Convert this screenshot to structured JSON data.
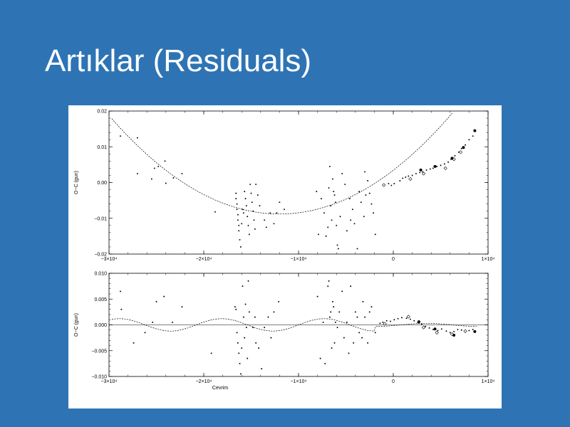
{
  "slide": {
    "title": "Artıklar (Residuals)"
  },
  "chart_data": [
    {
      "type": "scatter",
      "ylabel": "O−C (gun)",
      "xlabel": "",
      "xlim": [
        -30000,
        10000
      ],
      "ylim": [
        -0.02,
        0.02
      ],
      "x_ticks": [
        -30000,
        -20000,
        -10000,
        0,
        10000
      ],
      "x_tick_labels": [
        "−3×10⁴",
        "−2×10⁴",
        "−1×10⁴",
        "0",
        "1×10⁴"
      ],
      "y_ticks": [
        -0.02,
        -0.01,
        0.0,
        0.01,
        0.02
      ],
      "y_tick_labels": [
        "−0.02",
        "−0.01",
        "0.00",
        "0.01",
        "0.02"
      ],
      "fit": {
        "kind": "parabola",
        "vertex_x": -12000,
        "vertex_y": -0.0088,
        "a": 8.5e-11
      },
      "series": [
        {
          "marker": "dot",
          "points": [
            [
              -28800,
              0.013
            ],
            [
              -27000,
              0.0125
            ],
            [
              -27000,
              0.0025
            ],
            [
              -25500,
              0.001
            ],
            [
              -25200,
              0.004
            ],
            [
              -24800,
              0.0045
            ],
            [
              -24100,
              0.006
            ],
            [
              -24000,
              -0.0002
            ],
            [
              -23200,
              0.0013
            ],
            [
              -22300,
              0.0025
            ],
            [
              -18800,
              -0.0082
            ],
            [
              -16600,
              -0.003
            ],
            [
              -16600,
              -0.0045
            ],
            [
              -16500,
              -0.006
            ],
            [
              -16500,
              -0.0075
            ],
            [
              -16400,
              -0.009
            ],
            [
              -16400,
              -0.0105
            ],
            [
              -16300,
              -0.012
            ],
            [
              -16300,
              -0.0135
            ],
            [
              -16200,
              -0.016
            ],
            [
              -16100,
              -0.018
            ],
            [
              -16000,
              -0.0115
            ],
            [
              -15900,
              -0.0075
            ],
            [
              -15800,
              -0.0085
            ],
            [
              -15700,
              -0.0025
            ],
            [
              -15600,
              -0.0045
            ],
            [
              -15500,
              -0.0065
            ],
            [
              -15400,
              -0.0095
            ],
            [
              -15300,
              -0.012
            ],
            [
              -15200,
              -0.0145
            ],
            [
              -15100,
              -0.0005
            ],
            [
              -15000,
              -0.003
            ],
            [
              -14900,
              -0.0055
            ],
            [
              -14800,
              -0.008
            ],
            [
              -14700,
              -0.0105
            ],
            [
              -14600,
              -0.013
            ],
            [
              -14500,
              -0.0005
            ],
            [
              -14300,
              -0.0035
            ],
            [
              -14100,
              -0.0065
            ],
            [
              -13600,
              -0.0105
            ],
            [
              -13400,
              -0.0125
            ],
            [
              -13000,
              -0.0085
            ],
            [
              -12600,
              -0.0115
            ],
            [
              -12300,
              -0.0085
            ],
            [
              -12000,
              -0.0055
            ],
            [
              -11500,
              -0.0075
            ],
            [
              -8100,
              -0.0025
            ],
            [
              -7900,
              -0.0145
            ],
            [
              -7600,
              -0.0045
            ],
            [
              -7300,
              -0.0085
            ],
            [
              -7100,
              -0.015
            ],
            [
              -6900,
              -0.0125
            ],
            [
              -6800,
              -0.0015
            ],
            [
              -6700,
              0.0045
            ],
            [
              -6600,
              -0.0065
            ],
            [
              -6500,
              -0.0105
            ],
            [
              -6400,
              0.001
            ],
            [
              -6300,
              -0.0025
            ],
            [
              -6200,
              -0.0035
            ],
            [
              -6100,
              -0.0055
            ],
            [
              -6000,
              -0.012
            ],
            [
              -5900,
              -0.0175
            ],
            [
              -5800,
              -0.0185
            ],
            [
              -5600,
              -0.0095
            ],
            [
              -5400,
              0.0025
            ],
            [
              -5100,
              -0.0005
            ],
            [
              -4900,
              -0.0135
            ],
            [
              -4600,
              -0.0045
            ],
            [
              -4500,
              -0.0105
            ],
            [
              -4300,
              -0.0075
            ],
            [
              -4100,
              -0.0115
            ],
            [
              -3800,
              -0.0185
            ],
            [
              -3600,
              -0.0025
            ],
            [
              -3400,
              -0.0055
            ],
            [
              -3100,
              -0.0095
            ],
            [
              -3000,
              0.003
            ],
            [
              -2900,
              -0.0035
            ],
            [
              -2700,
              0.0005
            ],
            [
              -2500,
              -0.003
            ],
            [
              -2300,
              -0.006
            ],
            [
              -2100,
              -0.0085
            ],
            [
              -1900,
              -0.0145
            ],
            [
              -500,
              -0.0003
            ],
            [
              -200,
              -0.0008
            ],
            [
              100,
              -0.0003
            ],
            [
              700,
              0.0005
            ],
            [
              1000,
              0.0012
            ],
            [
              1300,
              0.0015
            ],
            [
              1600,
              0.0018
            ],
            [
              2000,
              0.002
            ],
            [
              2400,
              0.0025
            ],
            [
              2800,
              0.0028
            ],
            [
              3100,
              0.003
            ],
            [
              3500,
              0.0035
            ],
            [
              3900,
              0.0038
            ],
            [
              4200,
              0.004
            ],
            [
              4600,
              0.0045
            ],
            [
              5000,
              0.0048
            ],
            [
              5400,
              0.0052
            ],
            [
              5800,
              0.0057
            ],
            [
              6100,
              0.0065
            ],
            [
              6500,
              0.0075
            ],
            [
              6900,
              0.0085
            ],
            [
              7200,
              0.0095
            ],
            [
              7600,
              0.0105
            ],
            [
              8000,
              0.012
            ],
            [
              8400,
              0.013
            ]
          ]
        },
        {
          "marker": "open-diamond",
          "points": [
            [
              -1000,
              -0.0007
            ],
            [
              1800,
              0.001
            ],
            [
              3200,
              0.0025
            ],
            [
              5500,
              0.004
            ],
            [
              6400,
              0.0065
            ],
            [
              7100,
              0.0085
            ]
          ]
        },
        {
          "marker": "filled-circle",
          "points": [
            [
              2900,
              0.0035
            ],
            [
              4400,
              0.0045
            ],
            [
              6200,
              0.0068
            ],
            [
              7400,
              0.0098
            ],
            [
              8600,
              0.0145
            ]
          ]
        }
      ]
    },
    {
      "type": "scatter",
      "ylabel": "O−C (gun)",
      "xlabel": "Cevrim",
      "xlim": [
        -30000,
        10000
      ],
      "ylim": [
        -0.01,
        0.01
      ],
      "x_ticks": [
        -30000,
        -20000,
        -10000,
        0,
        10000
      ],
      "x_tick_labels": [
        "−3×10⁴",
        "−2×10⁴",
        "−1×10⁴",
        "0",
        "1×10⁴"
      ],
      "y_ticks": [
        -0.01,
        -0.005,
        0.0,
        0.005,
        0.01
      ],
      "y_tick_labels": [
        "−0.010",
        "−0.005",
        "0.000",
        "0.005",
        "0.010"
      ],
      "zero_line": true,
      "fit": {
        "kind": "damped-sine",
        "amplitude": 0.0012,
        "period": 10800,
        "phase_x": -28900,
        "damp_after": -2000,
        "damp_amplitude": 0.0003
      },
      "series": [
        {
          "marker": "dot",
          "points": [
            [
              -28800,
              0.0065
            ],
            [
              -28700,
              0.003
            ],
            [
              -27400,
              -0.0035
            ],
            [
              -26200,
              -0.0015
            ],
            [
              -25400,
              0.0005
            ],
            [
              -25000,
              0.0045
            ],
            [
              -24200,
              0.0055
            ],
            [
              -23300,
              0.0005
            ],
            [
              -22300,
              0.0035
            ],
            [
              -19200,
              -0.0055
            ],
            [
              -16700,
              0.0035
            ],
            [
              -16600,
              0.003
            ],
            [
              -16500,
              -0.0015
            ],
            [
              -16400,
              -0.0035
            ],
            [
              -16300,
              -0.0055
            ],
            [
              -16200,
              -0.0075
            ],
            [
              -16100,
              -0.0095
            ],
            [
              -16000,
              -0.0045
            ],
            [
              -15900,
              0.0075
            ],
            [
              -15800,
              0.0015
            ],
            [
              -15700,
              -0.0025
            ],
            [
              -15600,
              0.004
            ],
            [
              -15500,
              -0.0005
            ],
            [
              -15400,
              -0.0065
            ],
            [
              -15300,
              0.0085
            ],
            [
              -15200,
              0.0025
            ],
            [
              -14800,
              -0.0005
            ],
            [
              -14600,
              0.0015
            ],
            [
              -14500,
              -0.0035
            ],
            [
              -14200,
              -0.0045
            ],
            [
              -13900,
              -0.0085
            ],
            [
              -13600,
              -0.0005
            ],
            [
              -13200,
              0.0015
            ],
            [
              -12900,
              -0.0025
            ],
            [
              -12600,
              0.0025
            ],
            [
              -12100,
              0.0045
            ],
            [
              -8000,
              0.0055
            ],
            [
              -7700,
              -0.0065
            ],
            [
              -7400,
              0.0005
            ],
            [
              -7200,
              -0.0075
            ],
            [
              -6900,
              0.0075
            ],
            [
              -6800,
              0.0085
            ],
            [
              -6700,
              0.0015
            ],
            [
              -6600,
              0.0025
            ],
            [
              -6500,
              -0.0045
            ],
            [
              -6400,
              0.0045
            ],
            [
              -6300,
              0.0035
            ],
            [
              -6200,
              -0.0035
            ],
            [
              -6100,
              0.0005
            ],
            [
              -5900,
              -0.0005
            ],
            [
              -5700,
              0.0025
            ],
            [
              -5400,
              0.0065
            ],
            [
              -5200,
              -0.0025
            ],
            [
              -4900,
              0.0005
            ],
            [
              -4700,
              -0.0055
            ],
            [
              -4500,
              0.0075
            ],
            [
              -4200,
              -0.0035
            ],
            [
              -4000,
              0.0025
            ],
            [
              -3800,
              0.0015
            ],
            [
              -3600,
              -0.0015
            ],
            [
              -3300,
              -0.0025
            ],
            [
              -3200,
              0.0045
            ],
            [
              -3000,
              0.0015
            ],
            [
              -2700,
              -0.0035
            ],
            [
              -2500,
              0.0025
            ],
            [
              -2300,
              0.0035
            ],
            [
              -1900,
              -0.0015
            ],
            [
              -1400,
              0.0003
            ],
            [
              -1100,
              0.0005
            ],
            [
              -700,
              0.0008
            ],
            [
              -300,
              0.0007
            ],
            [
              100,
              0.001
            ],
            [
              500,
              0.0012
            ],
            [
              900,
              0.0014
            ],
            [
              1400,
              0.0013
            ],
            [
              1800,
              0.0011
            ],
            [
              2200,
              0.0008
            ],
            [
              2600,
              0.0004
            ],
            [
              3000,
              0.0001
            ],
            [
              3400,
              -0.0003
            ],
            [
              3800,
              -0.0006
            ],
            [
              4200,
              -0.0009
            ],
            [
              4700,
              -0.0011
            ],
            [
              5100,
              -0.0008
            ],
            [
              5600,
              -0.0012
            ],
            [
              6000,
              -0.0015
            ],
            [
              6400,
              -0.0013
            ],
            [
              6800,
              -0.0009
            ],
            [
              7200,
              -0.001
            ],
            [
              7600,
              -0.0014
            ],
            [
              8000,
              -0.0011
            ],
            [
              8400,
              -0.0009
            ]
          ]
        },
        {
          "marker": "open-diamond",
          "points": [
            [
              -900,
              0.0002
            ],
            [
              1600,
              0.0016
            ],
            [
              3200,
              -0.0005
            ],
            [
              4600,
              -0.0015
            ],
            [
              6200,
              -0.0018
            ],
            [
              7600,
              -0.0012
            ]
          ]
        },
        {
          "marker": "filled-circle",
          "points": [
            [
              2700,
              0.0006
            ],
            [
              4400,
              -0.0008
            ],
            [
              6400,
              -0.002
            ],
            [
              8600,
              -0.0013
            ]
          ]
        }
      ]
    }
  ]
}
